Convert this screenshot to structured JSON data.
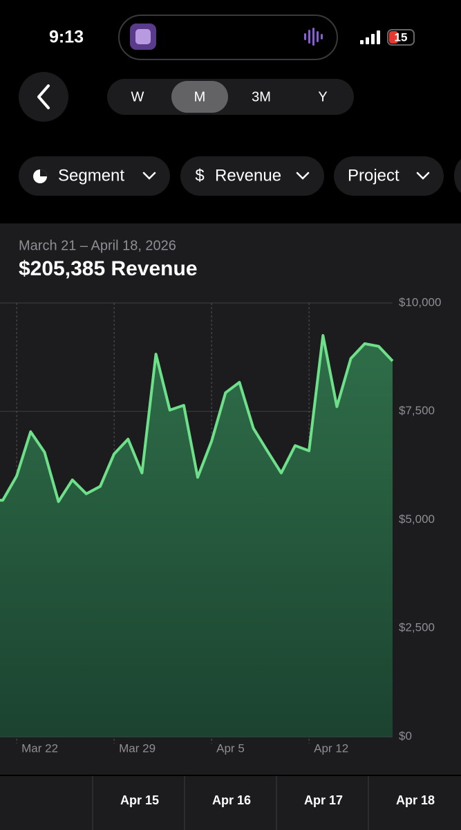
{
  "status_bar": {
    "time": "9:13",
    "battery": "15"
  },
  "period_tabs": {
    "items": [
      "W",
      "M",
      "3M",
      "Y"
    ],
    "selected": "M"
  },
  "filters": [
    {
      "icon": "$",
      "label": "Revenue"
    },
    {
      "label": "Segment"
    },
    {
      "label": "Project"
    }
  ],
  "chart_data": {
    "type": "area",
    "subtitle": "March 21 – April 18, 2026",
    "title": "$205,385 Revenue",
    "categories": [
      null,
      "Mar 22",
      null,
      null,
      null,
      null,
      null,
      null,
      "Mar 29",
      null,
      null,
      null,
      null,
      null,
      null,
      "Apr 5",
      null,
      null,
      null,
      null,
      null,
      null,
      "Apr 12",
      null,
      null,
      null,
      null,
      null,
      null
    ],
    "series": [
      {
        "name": "Revenue",
        "color": "#6ee08a",
        "values": [
          5450,
          6010,
          7030,
          6560,
          5420,
          5920,
          5600,
          5770,
          6520,
          6860,
          6080,
          8820,
          7530,
          7640,
          5980,
          6810,
          7930,
          8170,
          7110,
          6590,
          6080,
          6710,
          6590,
          9250,
          7610,
          8720,
          9060,
          9000,
          8660
        ]
      }
    ],
    "ylim": [
      0,
      10000
    ],
    "yticks": [
      {
        "value": 0,
        "label": "$0"
      },
      {
        "value": 2500,
        "label": "$2,500"
      },
      {
        "value": 5000,
        "label": "$5,000"
      },
      {
        "value": 7500,
        "label": "$7,500"
      },
      {
        "value": 10000,
        "label": "$10,000"
      }
    ],
    "grid": true,
    "y_axis_side": "right"
  },
  "day_strip": [
    "Apr 15",
    "Apr 16",
    "Apr 17",
    "Apr 18"
  ]
}
